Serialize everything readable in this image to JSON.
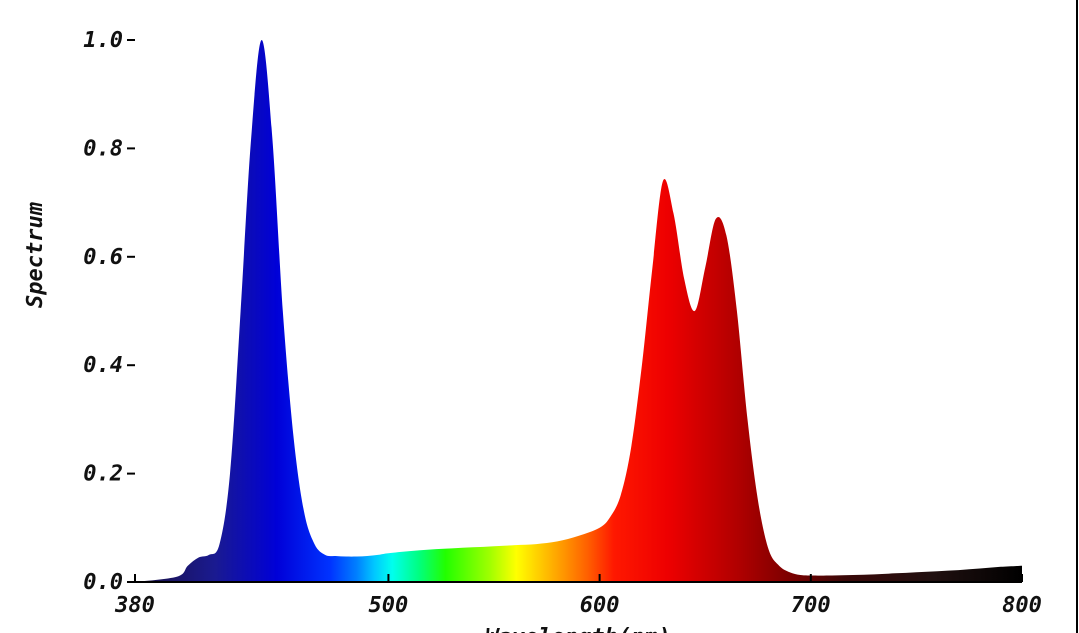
{
  "chart_data": {
    "type": "area",
    "title": "",
    "xlabel": "Wavelength(nm)",
    "ylabel": "Spectrum",
    "xlim": [
      380,
      800
    ],
    "ylim": [
      0,
      1.0
    ],
    "xticks": [
      {
        "value": 380,
        "label": "380"
      },
      {
        "value": 500,
        "label": "500"
      },
      {
        "value": 600,
        "label": "600"
      },
      {
        "value": 700,
        "label": "700"
      },
      {
        "value": 800,
        "label": "800"
      }
    ],
    "yticks": [
      {
        "value": 0.0,
        "label": "0.0"
      },
      {
        "value": 0.2,
        "label": "0.2"
      },
      {
        "value": 0.4,
        "label": "0.4"
      },
      {
        "value": 0.6,
        "label": "0.6"
      },
      {
        "value": 0.8,
        "label": "0.8"
      },
      {
        "value": 1.0,
        "label": "1.0"
      }
    ],
    "fill": "wavelength spectrum gradient",
    "x": [
      380,
      400,
      405,
      410,
      415,
      420,
      425,
      430,
      435,
      440,
      445,
      450,
      455,
      460,
      465,
      470,
      475,
      480,
      485,
      490,
      495,
      500,
      510,
      520,
      530,
      540,
      550,
      560,
      570,
      580,
      590,
      600,
      605,
      610,
      615,
      620,
      625,
      630,
      635,
      640,
      645,
      650,
      655,
      660,
      665,
      670,
      675,
      680,
      685,
      690,
      695,
      700,
      710,
      720,
      730,
      740,
      750,
      760,
      770,
      780,
      790,
      800
    ],
    "y": [
      0.0,
      0.01,
      0.03,
      0.045,
      0.05,
      0.07,
      0.2,
      0.5,
      0.82,
      1.0,
      0.82,
      0.5,
      0.27,
      0.13,
      0.07,
      0.05,
      0.048,
      0.047,
      0.047,
      0.048,
      0.05,
      0.053,
      0.057,
      0.06,
      0.062,
      0.064,
      0.066,
      0.068,
      0.07,
      0.075,
      0.085,
      0.1,
      0.12,
      0.16,
      0.25,
      0.4,
      0.58,
      0.74,
      0.68,
      0.56,
      0.5,
      0.58,
      0.67,
      0.64,
      0.5,
      0.3,
      0.15,
      0.06,
      0.03,
      0.018,
      0.013,
      0.012,
      0.012,
      0.013,
      0.014,
      0.016,
      0.018,
      0.02,
      0.022,
      0.025,
      0.028,
      0.03
    ]
  }
}
